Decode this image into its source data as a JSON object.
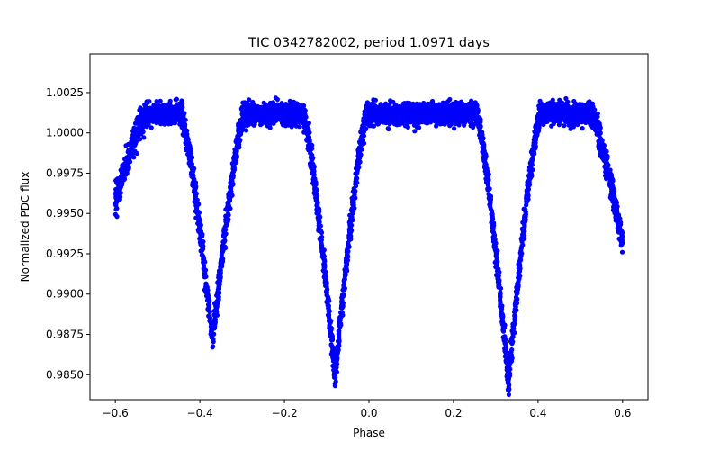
{
  "chart_data": {
    "type": "scatter",
    "title": "TIC 0342782002, period 1.0971 days",
    "xlabel": "Phase",
    "ylabel": "Normalized PDC flux",
    "xlim": [
      -0.66,
      0.66
    ],
    "ylim": [
      0.98345,
      1.0049
    ],
    "xticks": [
      -0.6,
      -0.4,
      -0.2,
      0.0,
      0.2,
      0.4,
      0.6
    ],
    "xtick_labels": [
      "−0.6",
      "−0.4",
      "−0.2",
      "0.0",
      "0.2",
      "0.4",
      "0.6"
    ],
    "yticks": [
      0.985,
      0.9875,
      0.99,
      0.9925,
      0.995,
      0.9975,
      1.0,
      1.0025
    ],
    "ytick_labels": [
      "0.9850",
      "0.9875",
      "0.9900",
      "0.9925",
      "0.9950",
      "0.9975",
      "1.0000",
      "1.0025"
    ],
    "grid": false,
    "marker_color": "#0000ff",
    "series": [
      {
        "phase_range": [
          -0.6,
          0.6
        ],
        "baseline_flux": 1.0012,
        "baseline_scatter": 0.0006,
        "dips": [
          {
            "center_phase": -0.6,
            "depth_flux_min": 0.9951
          },
          {
            "center_phase": -0.37,
            "depth_flux_min": 0.9865
          },
          {
            "center_phase": -0.08,
            "depth_flux_min": 0.9842
          },
          {
            "center_phase": 0.33,
            "depth_flux_min": 0.9838
          },
          {
            "center_phase": 0.6,
            "depth_flux_min": 0.9926
          }
        ]
      }
    ]
  }
}
